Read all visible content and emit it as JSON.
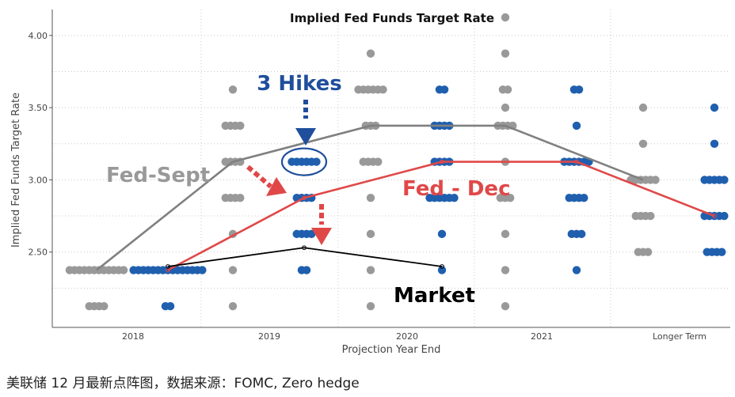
{
  "chart_data": {
    "type": "scatter",
    "title": "Implied Fed Funds Target Rate",
    "xlabel": "Projection Year End",
    "ylabel": "Implied Fed Funds Target Rate",
    "categories": [
      "2018",
      "2019",
      "2020",
      "2021",
      "Longer Term"
    ],
    "yticks": [
      "2.50",
      "3.00",
      "3.50",
      "4.00"
    ],
    "ylim": [
      2.0,
      4.125
    ],
    "grid": true,
    "colors": {
      "sept_dots": "#999999",
      "dec_dots": "#1f5fae",
      "sept_line": "#808080",
      "dec_line": "#e04848",
      "market_line": "#000000",
      "annotation_blue": "#1f4e9c"
    },
    "series": [
      {
        "name": "Fed-Sept",
        "kind": "dots",
        "points": [
          {
            "x": "2018",
            "y": 2.375,
            "n": 12
          },
          {
            "x": "2018",
            "y": 2.125,
            "n": 4
          },
          {
            "x": "2019",
            "y": 3.625,
            "n": 1
          },
          {
            "x": "2019",
            "y": 3.375,
            "n": 4
          },
          {
            "x": "2019",
            "y": 3.125,
            "n": 4
          },
          {
            "x": "2019",
            "y": 2.875,
            "n": 4
          },
          {
            "x": "2019",
            "y": 2.625,
            "n": 1
          },
          {
            "x": "2019",
            "y": 2.375,
            "n": 1
          },
          {
            "x": "2019",
            "y": 2.125,
            "n": 1
          },
          {
            "x": "2020",
            "y": 3.875,
            "n": 1
          },
          {
            "x": "2020",
            "y": 3.625,
            "n": 6
          },
          {
            "x": "2020",
            "y": 3.375,
            "n": 3
          },
          {
            "x": "2020",
            "y": 3.125,
            "n": 4
          },
          {
            "x": "2020",
            "y": 2.875,
            "n": 1
          },
          {
            "x": "2020",
            "y": 2.625,
            "n": 1
          },
          {
            "x": "2020",
            "y": 2.375,
            "n": 1
          },
          {
            "x": "2020",
            "y": 2.125,
            "n": 1
          },
          {
            "x": "2021",
            "y": 4.125,
            "n": 1
          },
          {
            "x": "2021",
            "y": 3.875,
            "n": 1
          },
          {
            "x": "2021",
            "y": 3.625,
            "n": 2
          },
          {
            "x": "2021",
            "y": 3.5,
            "n": 1
          },
          {
            "x": "2021",
            "y": 3.375,
            "n": 4
          },
          {
            "x": "2021",
            "y": 3.125,
            "n": 1
          },
          {
            "x": "2021",
            "y": 2.875,
            "n": 3
          },
          {
            "x": "2021",
            "y": 2.625,
            "n": 1
          },
          {
            "x": "2021",
            "y": 2.375,
            "n": 1
          },
          {
            "x": "2021",
            "y": 2.125,
            "n": 1
          },
          {
            "x": "Longer Term",
            "y": 3.5,
            "n": 1
          },
          {
            "x": "Longer Term",
            "y": 3.25,
            "n": 1
          },
          {
            "x": "Longer Term",
            "y": 3.0,
            "n": 6
          },
          {
            "x": "Longer Term",
            "y": 2.75,
            "n": 4
          },
          {
            "x": "Longer Term",
            "y": 2.5,
            "n": 3
          }
        ]
      },
      {
        "name": "Fed - Dec",
        "kind": "dots",
        "points": [
          {
            "x": "2018",
            "y": 2.375,
            "n": 15
          },
          {
            "x": "2018",
            "y": 2.125,
            "n": 2
          },
          {
            "x": "2019",
            "y": 3.125,
            "n": 6
          },
          {
            "x": "2019",
            "y": 2.875,
            "n": 4
          },
          {
            "x": "2019",
            "y": 2.625,
            "n": 4
          },
          {
            "x": "2019",
            "y": 2.375,
            "n": 2
          },
          {
            "x": "2020",
            "y": 3.625,
            "n": 2
          },
          {
            "x": "2020",
            "y": 3.375,
            "n": 4
          },
          {
            "x": "2020",
            "y": 3.125,
            "n": 4
          },
          {
            "x": "2020",
            "y": 2.875,
            "n": 6
          },
          {
            "x": "2020",
            "y": 2.625,
            "n": 1
          },
          {
            "x": "2020",
            "y": 2.375,
            "n": 1
          },
          {
            "x": "2021",
            "y": 3.625,
            "n": 2
          },
          {
            "x": "2021",
            "y": 3.375,
            "n": 1
          },
          {
            "x": "2021",
            "y": 3.125,
            "n": 6
          },
          {
            "x": "2021",
            "y": 2.875,
            "n": 4
          },
          {
            "x": "2021",
            "y": 2.625,
            "n": 3
          },
          {
            "x": "2021",
            "y": 2.375,
            "n": 1
          },
          {
            "x": "Longer Term",
            "y": 3.5,
            "n": 1
          },
          {
            "x": "Longer Term",
            "y": 3.25,
            "n": 1
          },
          {
            "x": "Longer Term",
            "y": 3.0,
            "n": 5
          },
          {
            "x": "Longer Term",
            "y": 2.75,
            "n": 5
          },
          {
            "x": "Longer Term",
            "y": 2.5,
            "n": 4
          }
        ]
      },
      {
        "name": "Fed-Sept",
        "kind": "line",
        "points": [
          {
            "x": "2018",
            "y": 2.375
          },
          {
            "x": "2019",
            "y": 3.125
          },
          {
            "x": "2020",
            "y": 3.375
          },
          {
            "x": "2021",
            "y": 3.375
          },
          {
            "x": "Longer Term",
            "y": 3.0
          }
        ]
      },
      {
        "name": "Fed - Dec",
        "kind": "line",
        "points": [
          {
            "x": "2018",
            "y": 2.375
          },
          {
            "x": "2019",
            "y": 2.875
          },
          {
            "x": "2020",
            "y": 3.125
          },
          {
            "x": "2021",
            "y": 3.125
          },
          {
            "x": "Longer Term",
            "y": 2.75
          }
        ]
      },
      {
        "name": "Market",
        "kind": "line",
        "points": [
          {
            "x": "2018",
            "y": 2.4
          },
          {
            "x": "2019",
            "y": 2.53
          },
          {
            "x": "2020",
            "y": 2.4
          }
        ]
      }
    ],
    "annotations": [
      {
        "text": "3 Hikes",
        "color": "#1f4e9c"
      },
      {
        "text": "Fed-Sept",
        "color": "#999999"
      },
      {
        "text": "Fed - Dec",
        "color": "#e04848"
      },
      {
        "text": "Market",
        "color": "#000000"
      }
    ]
  },
  "caption": "美联储 12 月最新点阵图，数据来源：FOMC, Zero hedge"
}
